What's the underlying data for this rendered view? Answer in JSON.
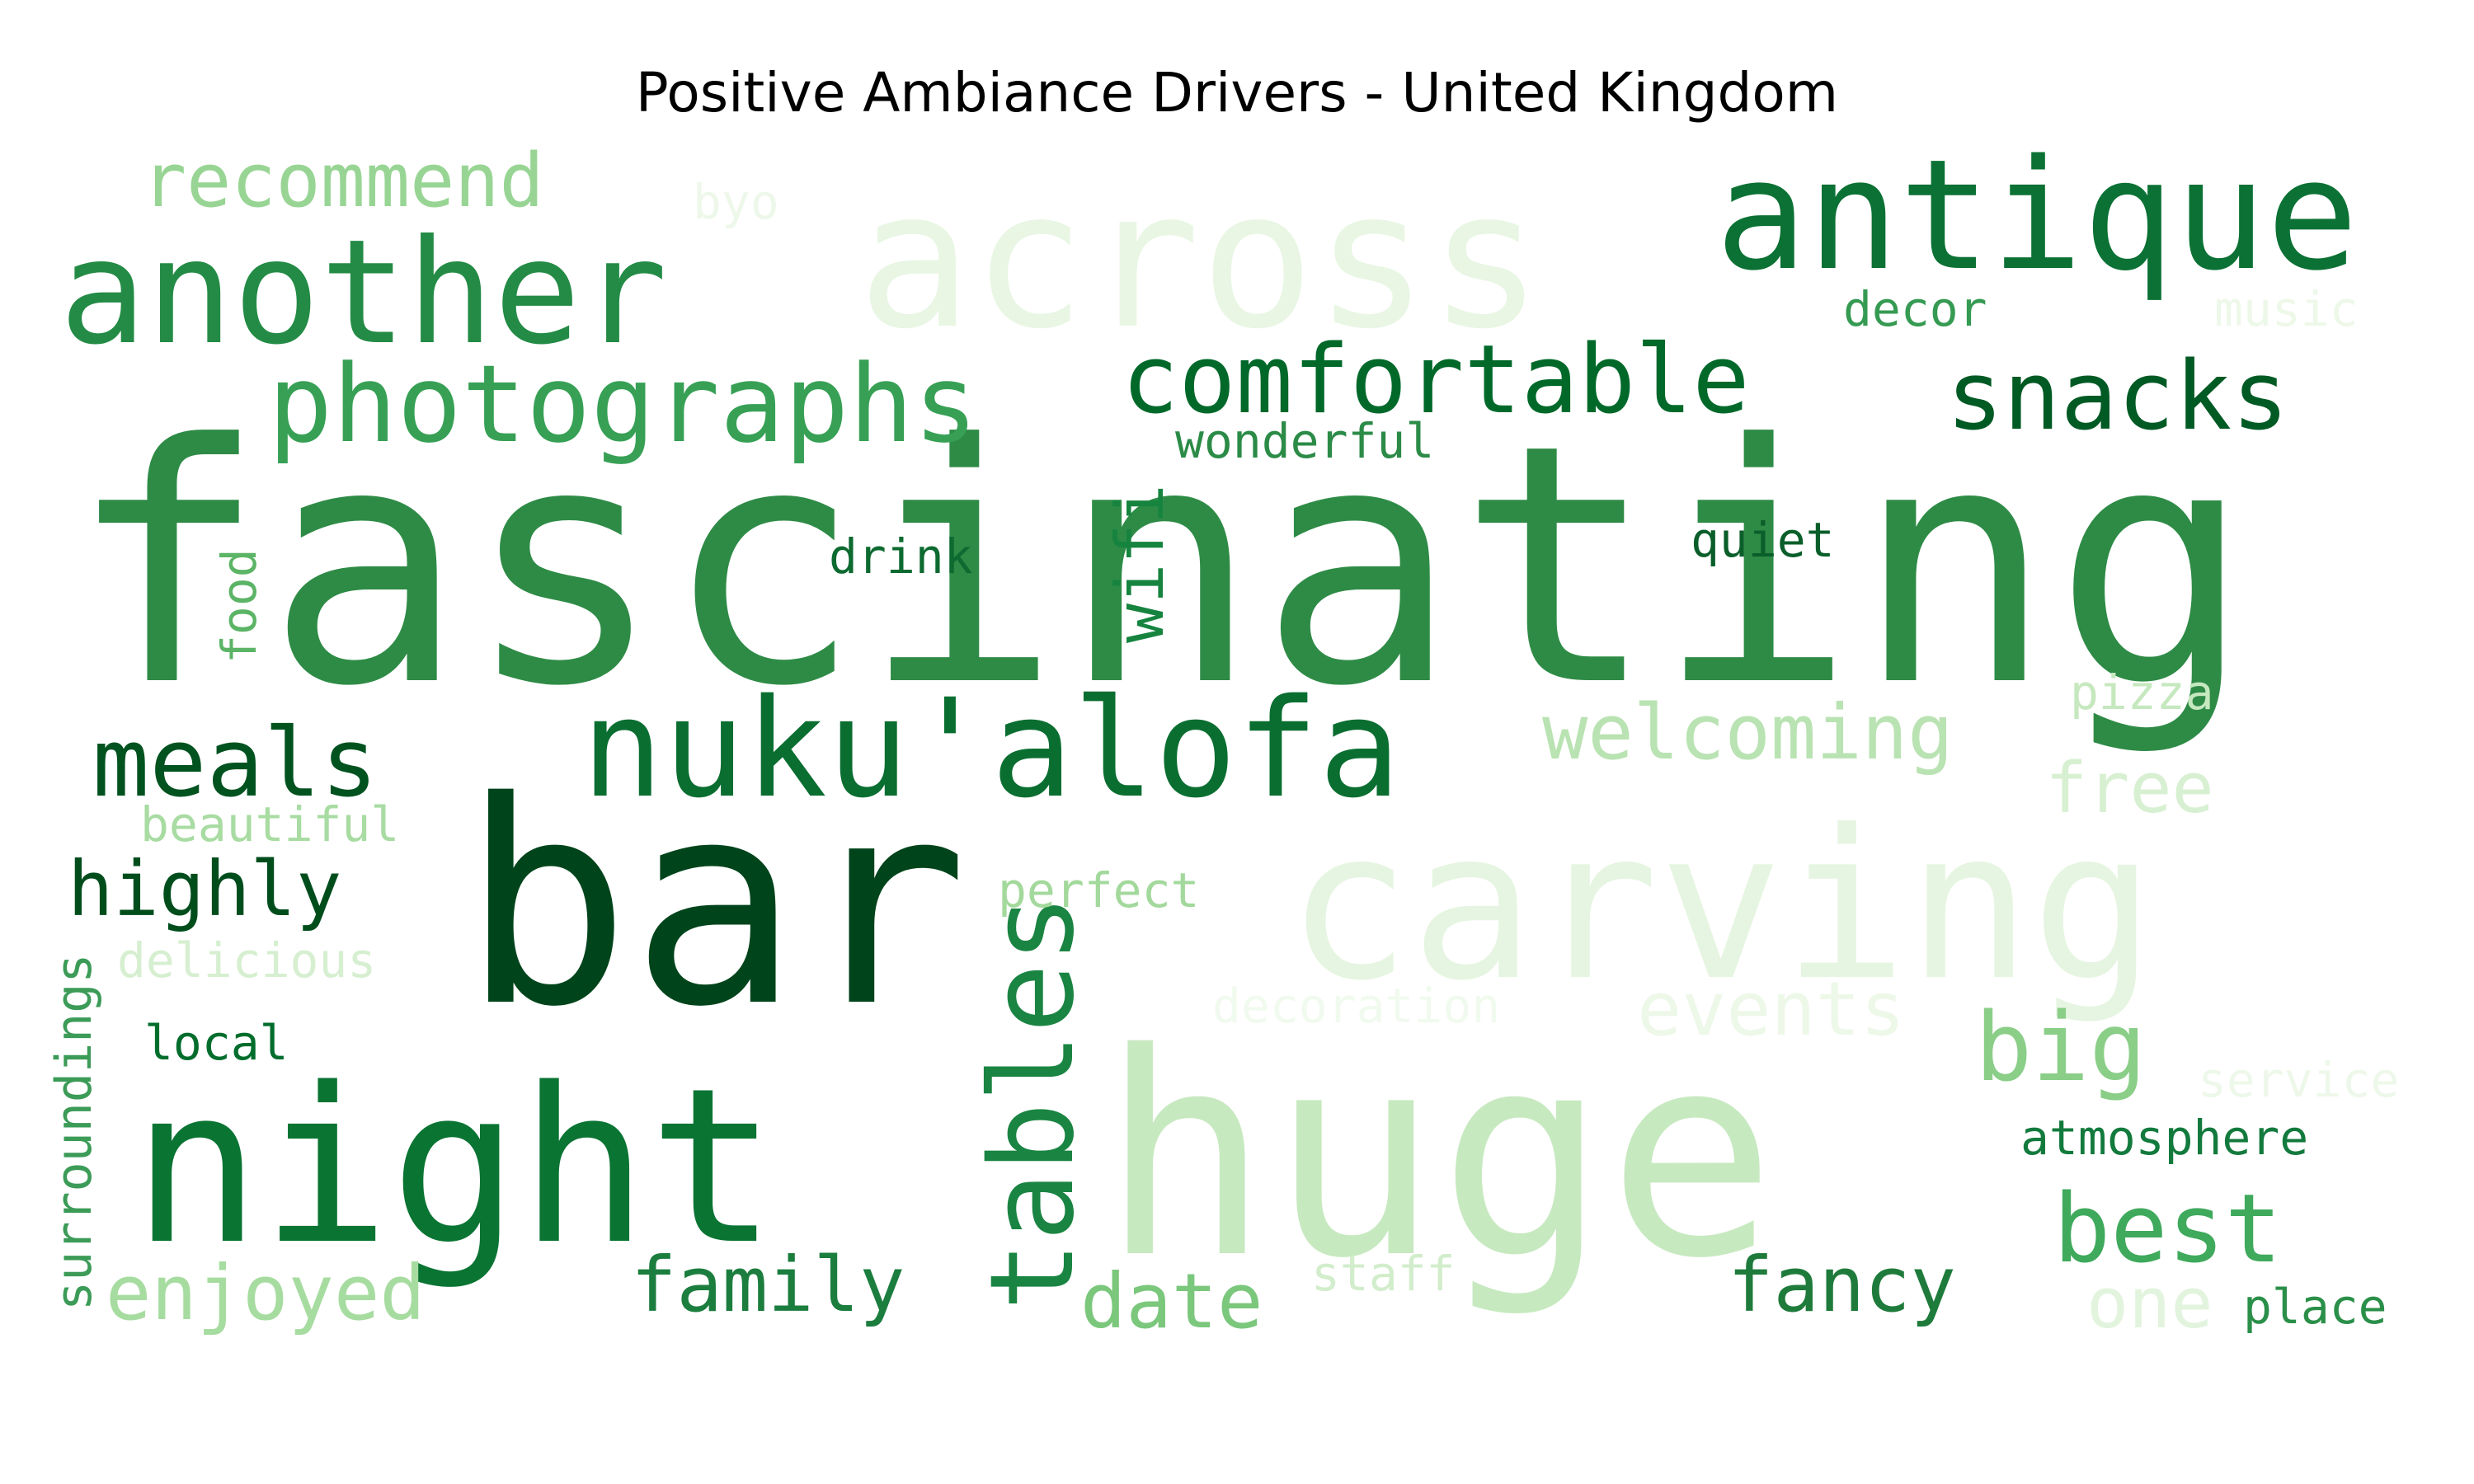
{
  "chart_data": {
    "type": "wordcloud",
    "title": "Positive Ambiance Drivers - United Kingdom",
    "colormap": "Greens",
    "words": [
      {
        "text": "fascinating",
        "color": "#2e8b46"
      },
      {
        "text": "bar",
        "color": "#00441b"
      },
      {
        "text": "huge",
        "color": "#c7e9c0"
      },
      {
        "text": "carving",
        "color": "#e6f5e1"
      },
      {
        "text": "across",
        "color": "#e8f6e3"
      },
      {
        "text": "night",
        "color": "#0a7433"
      },
      {
        "text": "antique",
        "color": "#0b7134"
      },
      {
        "text": "another",
        "color": "#238b45"
      },
      {
        "text": "nuku'alofa",
        "color": "#0a6e31"
      },
      {
        "text": "comfortable",
        "color": "#00692a"
      },
      {
        "text": "photographs",
        "color": "#37a055"
      },
      {
        "text": "snacks",
        "color": "#005a24"
      },
      {
        "text": "tables",
        "color": "#1a8442"
      },
      {
        "text": "meals",
        "color": "#00521f"
      },
      {
        "text": "welcoming",
        "color": "#b9e3b2"
      },
      {
        "text": "best",
        "color": "#3fa95c"
      },
      {
        "text": "recommend",
        "color": "#98d594"
      },
      {
        "text": "big",
        "color": "#8ace88"
      },
      {
        "text": "highly",
        "color": "#004d1c"
      },
      {
        "text": "enjoyed",
        "color": "#a7dca0"
      },
      {
        "text": "family",
        "color": "#1b7d3e"
      },
      {
        "text": "date",
        "color": "#7bc77c"
      },
      {
        "text": "fancy",
        "color": "#1f7b3b"
      },
      {
        "text": "wifi",
        "color": "#16843f"
      },
      {
        "text": "events",
        "color": "#edf8e9"
      },
      {
        "text": "free",
        "color": "#d8f0d2"
      },
      {
        "text": "one",
        "color": "#e2f4dd"
      },
      {
        "text": "surroundings",
        "color": "#3b9b57"
      },
      {
        "text": "beautiful",
        "color": "#a8dca2"
      },
      {
        "text": "delicious",
        "color": "#d6efd0"
      },
      {
        "text": "perfect",
        "color": "#a3d99c"
      },
      {
        "text": "local",
        "color": "#006d2c"
      },
      {
        "text": "decoration",
        "color": "#f1faee"
      },
      {
        "text": "staff",
        "color": "#d2edcc"
      },
      {
        "text": "service",
        "color": "#eef8ea"
      },
      {
        "text": "place",
        "color": "#2a8f49"
      },
      {
        "text": "atmosphere",
        "color": "#137a3d"
      },
      {
        "text": "pizza",
        "color": "#c6e8bf"
      },
      {
        "text": "quiet",
        "color": "#0a5e2a"
      },
      {
        "text": "wonderful",
        "color": "#2b8b47"
      },
      {
        "text": "drink",
        "color": "#0d6a30"
      },
      {
        "text": "food",
        "color": "#5cb466"
      },
      {
        "text": "decor",
        "color": "#359a52"
      },
      {
        "text": "music",
        "color": "#edf8e9"
      },
      {
        "text": "byo",
        "color": "#eef8ea"
      }
    ]
  }
}
